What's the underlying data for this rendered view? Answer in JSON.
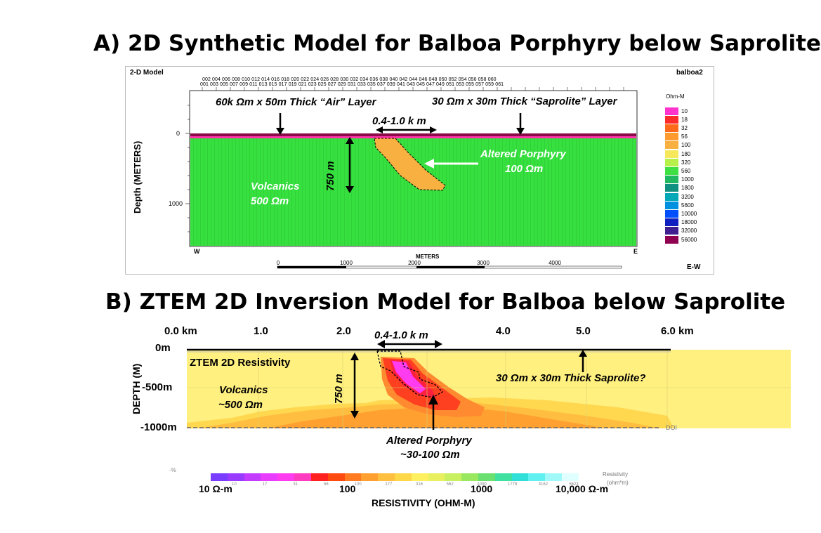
{
  "titles": {
    "a": "A) 2D Synthetic Model for Balboa Porphyry below Saprolite",
    "b": "B) ZTEM 2D Inversion Model for Balboa below Saprolite"
  },
  "panelA": {
    "header_left": "2-D Model",
    "header_right": "balboa2",
    "ylabel": "Depth (METERS)",
    "ytick_0": "0",
    "ytick_1000": "1000",
    "x_left": "W",
    "x_right": "E",
    "x_units": "METERS",
    "scale_ticks": [
      "0",
      "1000",
      "2000",
      "3000",
      "4000"
    ],
    "bottom_right": "E-W",
    "station_row1": "002 004 006 008 010 012 014 016 018 020 022 024 026 028 030 032 034 036 038 040 042 044 046 048 050 052 054 056 058 060",
    "station_row2": "001 003 005 007 009 011 013 015 017 019 021 023 025 027 029 031 033 035 037 039 041 043 045 047 049 051 053 055 057 059 061",
    "ann_air": "60k Ωm x 50m Thick “Air” Layer",
    "ann_sap": "30 Ωm x 30m Thick “Saprolite” Layer",
    "ann_width": "0.4-1.0 k m",
    "ann_depth": "750 m",
    "ann_porph1": "Altered Porphyry",
    "ann_porph2": "100 Ωm",
    "ann_volc1": "Volcanics",
    "ann_volc2": "500 Ωm",
    "legend_title": "Ohm-M",
    "legend": [
      {
        "label": "10",
        "color": "#ff33cc"
      },
      {
        "label": "18",
        "color": "#ff2a2a"
      },
      {
        "label": "32",
        "color": "#ff6a1a"
      },
      {
        "label": "56",
        "color": "#ff9a2e"
      },
      {
        "label": "100",
        "color": "#f8b040"
      },
      {
        "label": "180",
        "color": "#f6e85a"
      },
      {
        "label": "320",
        "color": "#b8f04a"
      },
      {
        "label": "560",
        "color": "#3fe043"
      },
      {
        "label": "1000",
        "color": "#20b860"
      },
      {
        "label": "1800",
        "color": "#109080"
      },
      {
        "label": "3200",
        "color": "#00a8b8"
      },
      {
        "label": "5600",
        "color": "#0090e0"
      },
      {
        "label": "10000",
        "color": "#0050ff"
      },
      {
        "label": "18000",
        "color": "#1020c0"
      },
      {
        "label": "32000",
        "color": "#402090"
      },
      {
        "label": "56000",
        "color": "#900050"
      }
    ]
  },
  "panelB": {
    "x_ticks": [
      "0.0 km",
      "1.0",
      "2.0",
      "4.0",
      "5.0",
      "6.0 km"
    ],
    "y_ticks": [
      "0m",
      "-500m",
      "-1000m"
    ],
    "ylabel": "DEPTH (M)",
    "box_label": "ZTEM 2D Resistivity",
    "ann_width": "0.4-1.0 k m",
    "ann_depth": "750 m",
    "ann_volc1": "Volcanics",
    "ann_volc2": "~500 Ωm",
    "ann_sap": "30 Ωm x 30m Thick Saprolite?",
    "ann_porph1": "Altered Porphyry",
    "ann_porph2": "~30-100 Ωm",
    "doi": "DOI",
    "colorbar_title": "Resistivity",
    "colorbar_units": "(ohm*m)",
    "colorbar_small_ticks": [
      "10",
      "17",
      "31",
      "56",
      "100",
      "177",
      "316",
      "562",
      "1000",
      "1778",
      "3162",
      "5623"
    ],
    "colorbar_labels": [
      "10 Ω-m",
      "100",
      "1000",
      "10,000 Ω-m"
    ],
    "xlabel": "RESISTIVITY (OHM-M)",
    "colorbar_colors": [
      "#7a3cff",
      "#9a3cff",
      "#c33cff",
      "#e83cff",
      "#ff3cf0",
      "#ff3cc0",
      "#ff2020",
      "#ff4a10",
      "#ff7a20",
      "#ffa030",
      "#ffc040",
      "#ffd84a",
      "#fff060",
      "#e8f060",
      "#c8f060",
      "#9ae860",
      "#6ae070",
      "#40e0a0",
      "#30e0d8",
      "#60f0f0",
      "#a0f8f8",
      "#e0ffff"
    ]
  }
}
